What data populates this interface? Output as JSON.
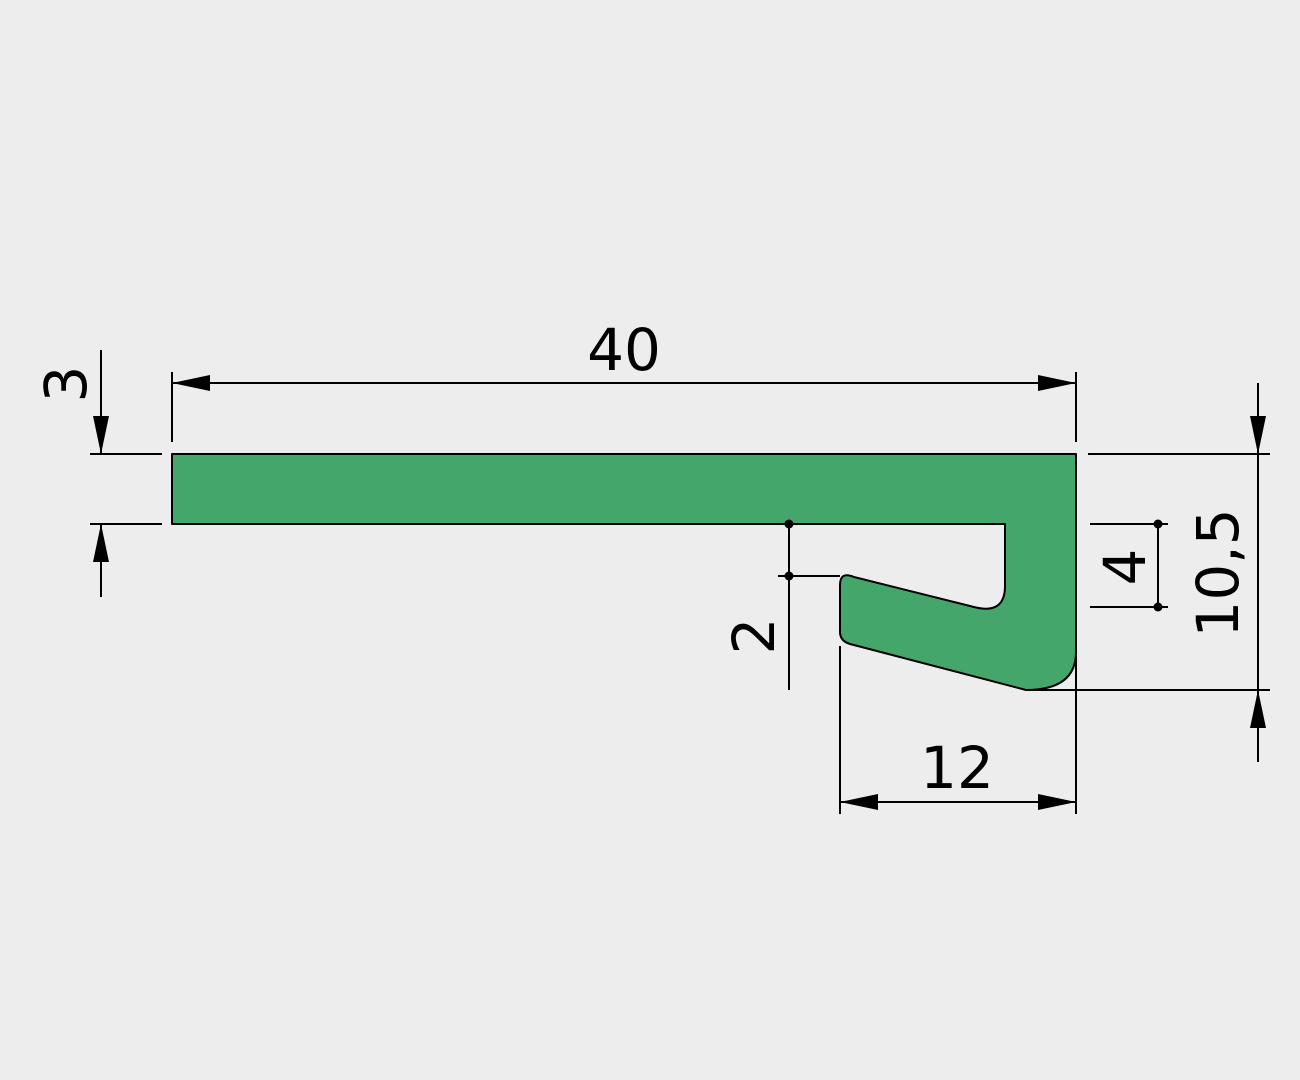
{
  "colors": {
    "background": "#ededed",
    "profile_fill": "#45a66b",
    "outline": "#000000"
  },
  "dimensions": {
    "overall_width": "40",
    "top_thickness": "3",
    "overall_height": "10,5",
    "hook_width": "12",
    "hook_gap": "2",
    "slot_depth": "4"
  }
}
